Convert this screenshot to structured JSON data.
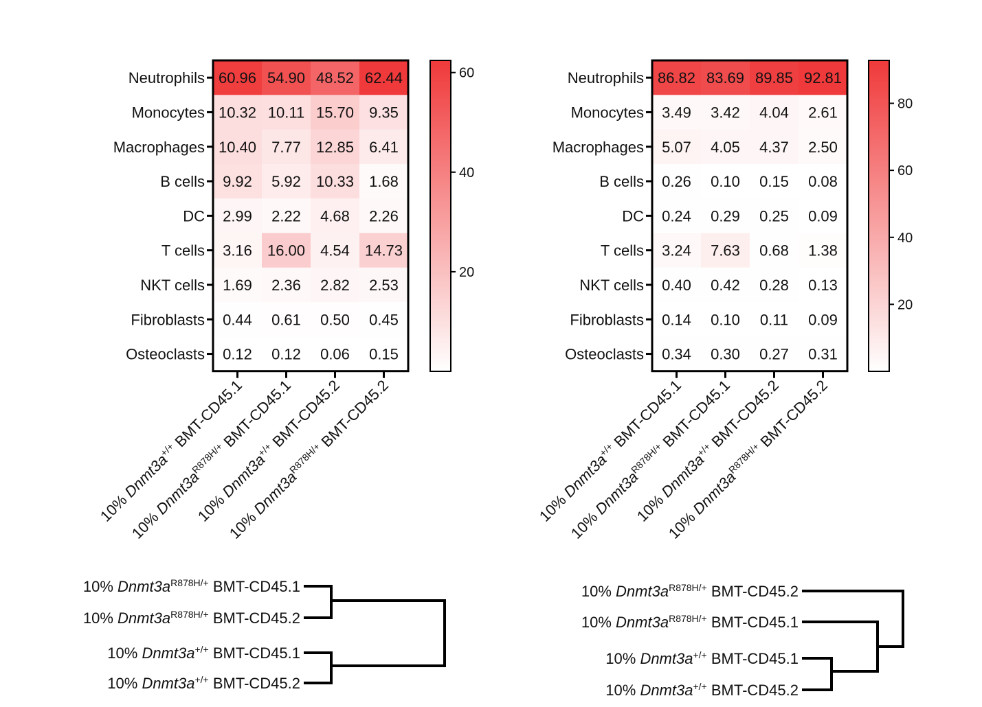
{
  "chart_data": [
    {
      "type": "heatmap",
      "rows": [
        "Neutrophils",
        "Monocytes",
        "Macrophages",
        "B cells",
        "DC",
        "T cells",
        "NKT cells",
        "Fibroblasts",
        "Osteoclasts"
      ],
      "columns": [
        {
          "prefix": "10% ",
          "gene": "Dnmt3a",
          "sup": "+/+",
          "suffix": " BMT-CD45.1"
        },
        {
          "prefix": "10% ",
          "gene": "Dnmt3a",
          "sup": "R878H/+",
          "suffix": " BMT-CD45.1"
        },
        {
          "prefix": "10% ",
          "gene": "Dnmt3a",
          "sup": "+/+",
          "suffix": " BMT-CD45.2"
        },
        {
          "prefix": "10% ",
          "gene": "Dnmt3a",
          "sup": "R878H/+",
          "suffix": " BMT-CD45.2"
        }
      ],
      "values": [
        [
          "60.96",
          "54.90",
          "48.52",
          "62.44"
        ],
        [
          "10.32",
          "10.11",
          "15.70",
          "9.35"
        ],
        [
          "10.40",
          "7.77",
          "12.85",
          "6.41"
        ],
        [
          "9.92",
          "5.92",
          "10.33",
          "1.68"
        ],
        [
          "2.99",
          "2.22",
          "4.68",
          "2.26"
        ],
        [
          "3.16",
          "16.00",
          "4.54",
          "14.73"
        ],
        [
          "1.69",
          "2.36",
          "2.82",
          "2.53"
        ],
        [
          "0.44",
          "0.61",
          "0.50",
          "0.45"
        ],
        [
          "0.12",
          "0.12",
          "0.06",
          "0.15"
        ]
      ],
      "colorbar": {
        "min": 0,
        "max": 62.44,
        "ticks": [
          "20",
          "40",
          "60"
        ],
        "high_color": "#f0393a",
        "low_color": "#ffffff"
      }
    },
    {
      "type": "heatmap",
      "rows": [
        "Neutrophils",
        "Monocytes",
        "Macrophages",
        "B cells",
        "DC",
        "T cells",
        "NKT cells",
        "Fibroblasts",
        "Osteoclasts"
      ],
      "columns": [
        {
          "prefix": "10% ",
          "gene": "Dnmt3a",
          "sup": "+/+",
          "suffix": " BMT-CD45.1"
        },
        {
          "prefix": "10% ",
          "gene": "Dnmt3a",
          "sup": "R878H/+",
          "suffix": " BMT-CD45.1"
        },
        {
          "prefix": "10% ",
          "gene": "Dnmt3a",
          "sup": "+/+",
          "suffix": " BMT-CD45.2"
        },
        {
          "prefix": "10% ",
          "gene": "Dnmt3a",
          "sup": "R878H/+",
          "suffix": " BMT-CD45.2"
        }
      ],
      "values": [
        [
          "86.82",
          "83.69",
          "89.85",
          "92.81"
        ],
        [
          "3.49",
          "3.42",
          "4.04",
          "2.61"
        ],
        [
          "5.07",
          "4.05",
          "4.37",
          "2.50"
        ],
        [
          "0.26",
          "0.10",
          "0.15",
          "0.08"
        ],
        [
          "0.24",
          "0.29",
          "0.25",
          "0.09"
        ],
        [
          "3.24",
          "7.63",
          "0.68",
          "1.38"
        ],
        [
          "0.40",
          "0.42",
          "0.28",
          "0.13"
        ],
        [
          "0.14",
          "0.10",
          "0.11",
          "0.09"
        ],
        [
          "0.34",
          "0.30",
          "0.27",
          "0.31"
        ]
      ],
      "colorbar": {
        "min": 0,
        "max": 92.81,
        "ticks": [
          "20",
          "40",
          "60",
          "80"
        ],
        "high_color": "#f0393a",
        "low_color": "#ffffff"
      }
    }
  ],
  "dendrograms": [
    {
      "leaves": [
        {
          "prefix": "10% ",
          "gene": "Dnmt3a",
          "sup": "R878H/+",
          "suffix": " BMT-CD45.1"
        },
        {
          "prefix": "10% ",
          "gene": "Dnmt3a",
          "sup": "R878H/+",
          "suffix": " BMT-CD45.2"
        },
        {
          "prefix": "10% ",
          "gene": "Dnmt3a",
          "sup": "+/+",
          "suffix": " BMT-CD45.1"
        },
        {
          "prefix": "10% ",
          "gene": "Dnmt3a",
          "sup": "+/+",
          "suffix": " BMT-CD45.2"
        }
      ]
    },
    {
      "leaves": [
        {
          "prefix": "10% ",
          "gene": "Dnmt3a",
          "sup": "R878H/+",
          "suffix": " BMT-CD45.2"
        },
        {
          "prefix": "10% ",
          "gene": "Dnmt3a",
          "sup": "R878H/+",
          "suffix": " BMT-CD45.1"
        },
        {
          "prefix": "10% ",
          "gene": "Dnmt3a",
          "sup": "+/+",
          "suffix": " BMT-CD45.1"
        },
        {
          "prefix": "10% ",
          "gene": "Dnmt3a",
          "sup": "+/+",
          "suffix": " BMT-CD45.2"
        }
      ]
    }
  ]
}
